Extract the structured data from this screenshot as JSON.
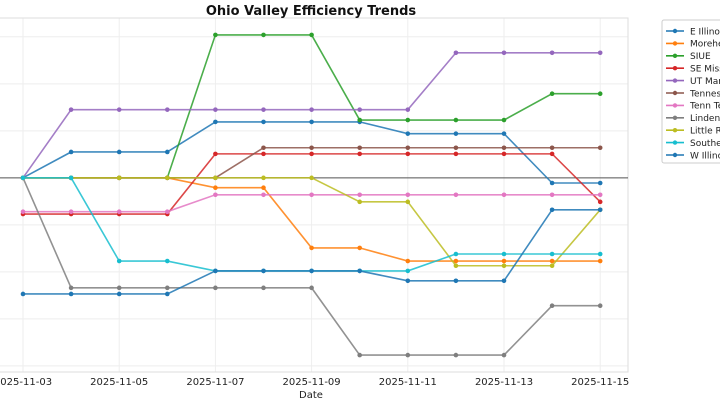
{
  "chart_data": {
    "type": "line",
    "title": "Ohio Valley Efficiency Trends",
    "xlabel": "Date",
    "ylabel": "",
    "x": [
      "2025-11-03",
      "2025-11-04",
      "2025-11-05",
      "2025-11-06",
      "2025-11-07",
      "2025-11-08",
      "2025-11-09",
      "2025-11-10",
      "2025-11-11",
      "2025-11-12",
      "2025-11-13",
      "2025-11-14",
      "2025-11-15"
    ],
    "xticks": [
      "2025-11-03",
      "2025-11-05",
      "2025-11-07",
      "2025-11-09",
      "2025-11-11",
      "2025-11-13",
      "2025-11-15"
    ],
    "ylim": [
      -4.13,
      3.4
    ],
    "yticks_visible": false,
    "grid": true,
    "zero_line": true,
    "legend": "outside-right",
    "series": [
      {
        "name": "E Illinois",
        "color": "#1f77b4",
        "values": [
          0,
          0.55,
          0.55,
          0.55,
          1.19,
          1.19,
          1.19,
          1.19,
          0.94,
          0.94,
          0.94,
          -0.11,
          -0.11
        ]
      },
      {
        "name": "Morehead St",
        "color": "#ff7f0e",
        "values": [
          0,
          0,
          0,
          0,
          -0.21,
          -0.21,
          -1.49,
          -1.49,
          -1.77,
          -1.77,
          -1.77,
          -1.77,
          -1.77
        ]
      },
      {
        "name": "SIUE",
        "color": "#2ca02c",
        "values": [
          0,
          0,
          0,
          0,
          3.04,
          3.04,
          3.04,
          1.23,
          1.23,
          1.23,
          1.23,
          1.79,
          1.79
        ]
      },
      {
        "name": "SE Missouri",
        "color": "#d62728",
        "values": [
          -0.77,
          -0.77,
          -0.77,
          -0.77,
          0.51,
          0.51,
          0.51,
          0.51,
          0.51,
          0.51,
          0.51,
          0.51,
          -0.51
        ]
      },
      {
        "name": "UT Martin",
        "color": "#9467bd",
        "values": [
          0,
          1.45,
          1.45,
          1.45,
          1.45,
          1.45,
          1.45,
          1.45,
          1.45,
          2.66,
          2.66,
          2.66,
          2.66
        ]
      },
      {
        "name": "Tennessee St",
        "color": "#8c564b",
        "values": [
          0,
          0,
          0,
          0,
          0,
          0.64,
          0.64,
          0.64,
          0.64,
          0.64,
          0.64,
          0.64,
          0.64
        ]
      },
      {
        "name": "Tenn Tech",
        "color": "#e377c2",
        "values": [
          -0.72,
          -0.72,
          -0.72,
          -0.72,
          -0.36,
          -0.36,
          -0.36,
          -0.36,
          -0.36,
          -0.36,
          -0.36,
          -0.36,
          -0.36
        ]
      },
      {
        "name": "Lindenwood",
        "color": "#7f7f7f",
        "values": [
          0,
          -2.34,
          -2.34,
          -2.34,
          -2.34,
          -2.34,
          -2.34,
          -3.77,
          -3.77,
          -3.77,
          -3.77,
          -2.72,
          -2.72
        ]
      },
      {
        "name": "Little Rock",
        "color": "#bcbd22",
        "values": [
          0,
          0,
          0,
          0,
          0,
          0,
          0,
          -0.51,
          -0.51,
          -1.87,
          -1.87,
          -1.87,
          -0.68
        ]
      },
      {
        "name": "Southern Indiana",
        "color": "#17becf",
        "values": [
          0,
          0,
          -1.77,
          -1.77,
          -1.98,
          -1.98,
          -1.98,
          -1.98,
          -1.98,
          -1.62,
          -1.62,
          -1.62,
          -1.62
        ]
      },
      {
        "name": "W Illinois",
        "color": "#1f77b4",
        "values": [
          -2.47,
          -2.47,
          -2.47,
          -2.47,
          -1.98,
          -1.98,
          -1.98,
          -1.98,
          -2.19,
          -2.19,
          -2.19,
          -0.68,
          -0.68
        ]
      }
    ]
  }
}
